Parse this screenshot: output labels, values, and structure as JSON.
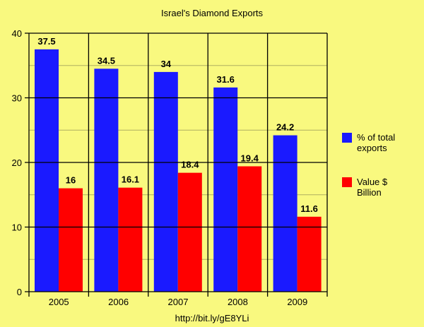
{
  "chart_data": {
    "type": "bar",
    "title": "Israel's Diamond Exports",
    "categories": [
      "2005",
      "2006",
      "2007",
      "2008",
      "2009"
    ],
    "series": [
      {
        "name": "% of total exports",
        "legend_lines": [
          "% of total",
          "exports"
        ],
        "color": "#1a1aff",
        "values": [
          37.5,
          34.5,
          34,
          31.6,
          24.2
        ],
        "labels": [
          "37.5",
          "34.5",
          "34",
          "31.6",
          "24.2"
        ]
      },
      {
        "name": "Value $ Billion",
        "legend_lines": [
          "Value $",
          "Billion"
        ],
        "color": "#ff0000",
        "values": [
          16,
          16.1,
          18.4,
          19.4,
          11.6
        ],
        "labels": [
          "16",
          "16.1",
          "18.4",
          "19.4",
          "11.6"
        ]
      }
    ],
    "ylim": [
      0,
      40
    ],
    "yticks": [
      "0",
      "10",
      "20",
      "30",
      "40"
    ],
    "minor_grid_step": 5,
    "grid": true,
    "legend_position": "right",
    "xlabel": "",
    "ylabel": "",
    "footer": "http://bit.ly/gE8YLi"
  },
  "colors": {
    "background": "#f9f97f",
    "minor_grid": "#b0b060",
    "axis": "#000000"
  }
}
